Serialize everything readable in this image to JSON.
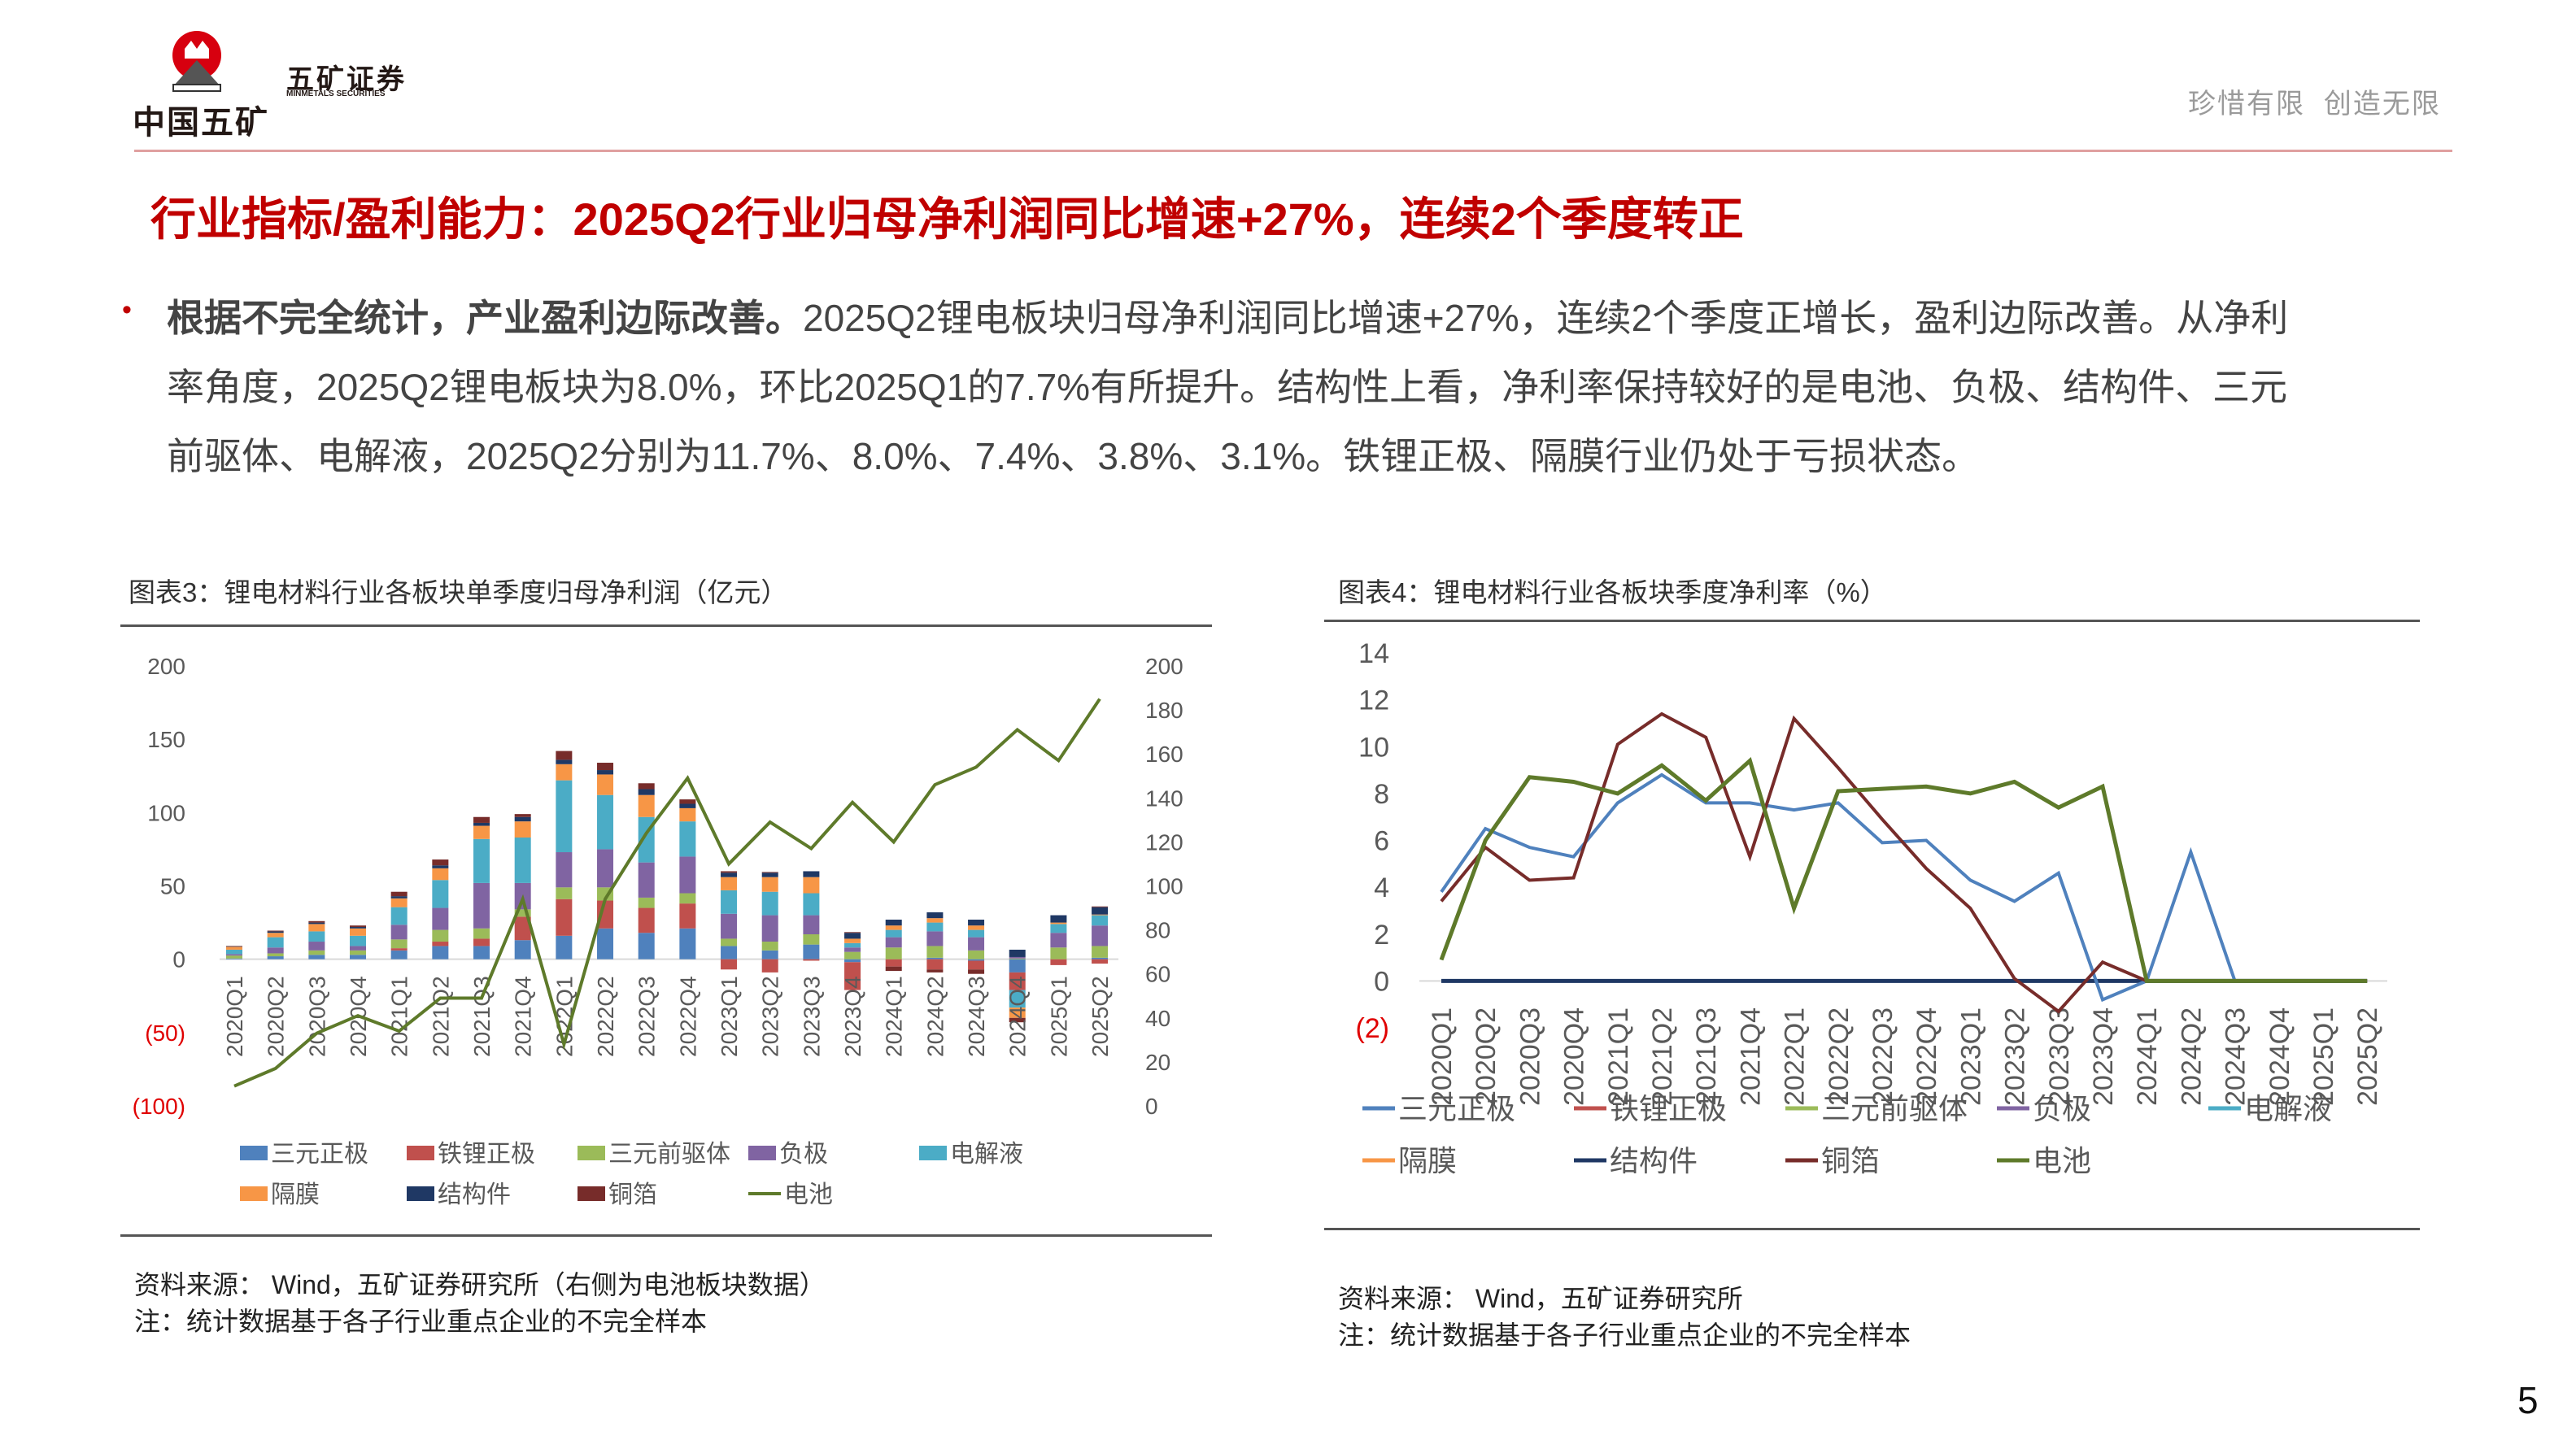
{
  "header": {
    "logo_text": "中国五矿",
    "logo_emblem_text": "MINMETALS",
    "brand_cn": "五矿证券",
    "brand_en": "MINMETALS SECURITIES",
    "slogan": "珍惜有限  创造无限"
  },
  "title": "行业指标/盈利能力：2025Q2行业归母净利润同比增速+27%，连续2个季度转正",
  "body": {
    "lines": [
      "根据不完全统计，产业盈利边际改善。2025Q2锂电板块归母净利润同比增速+27%，连续2个季度正增长，盈利边际改善。从净利",
      "率角度，2025Q2锂电板块为8.0%，环比2025Q1的7.7%有所提升。结构性上看，净利率保持较好的是电池、负极、结构件、三元",
      "前驱体、电解液，2025Q2分别为11.7%、8.0%、7.4%、3.8%、3.1%。铁锂正极、隔膜行业仍处于亏损状态。"
    ],
    "bold_lead": "根据不完全统计，产业盈利边际改善。"
  },
  "colors": {
    "accent": "#c00000",
    "三元正极": "#4f81bd",
    "铁锂正极": "#c0504d",
    "三元前驱体": "#9bbb59",
    "负极": "#8064a2",
    "电解液": "#4bacc6",
    "隔膜": "#f79646",
    "结构件": "#1f3864",
    "铜箔": "#772c2a",
    "电池": "#5e7a2a"
  },
  "left_panel": {
    "title": "图表3：锂电材料行业各板块单季度归母净利润（亿元）",
    "source": "资料来源： Wind，五矿证券研究所（右侧为电池板块数据）",
    "note": "注：统计数据基于各子行业重点企业的不完全样本"
  },
  "right_panel": {
    "title": "图表4：锂电材料行业各板块季度净利率（%）",
    "source": "资料来源： Wind，五矿证券研究所",
    "note": "注：统计数据基于各子行业重点企业的不完全样本"
  },
  "chart_data": [
    {
      "type": "bar",
      "stacked": true,
      "categories": [
        "2020Q1",
        "2020Q2",
        "2020Q3",
        "2020Q4",
        "2021Q1",
        "2021Q2",
        "2021Q3",
        "2021Q4",
        "2022Q1",
        "2022Q2",
        "2022Q3",
        "2022Q4",
        "2023Q1",
        "2023Q2",
        "2023Q3",
        "2023Q4",
        "2024Q1",
        "2024Q2",
        "2024Q3",
        "2024Q4",
        "2025Q1",
        "2025Q2"
      ],
      "ylim": [
        -100,
        200
      ],
      "yticks": [
        "200",
        "150",
        "100",
        "50",
        "0",
        "(50)",
        "(100)"
      ],
      "y2lim": [
        0,
        200
      ],
      "y2ticks": [
        "200",
        "180",
        "160",
        "140",
        "120",
        "100",
        "80",
        "60",
        "40",
        "20",
        "0"
      ],
      "legend_position": "bottom",
      "series": [
        {
          "name": "三元正极",
          "values": [
            0.5,
            2,
            3,
            3,
            6,
            9,
            9,
            13,
            16,
            21,
            18,
            21,
            9,
            6,
            10,
            -2,
            0,
            1,
            -1,
            -9,
            0,
            1
          ]
        },
        {
          "name": "铁锂正极",
          "values": [
            0,
            0,
            0,
            0,
            1.5,
            3,
            5,
            16,
            25,
            19,
            17,
            17,
            -7,
            -9,
            -1,
            -19,
            -5,
            -7,
            -6,
            -12,
            -4,
            -3
          ]
        },
        {
          "name": "三元前驱体",
          "values": [
            2,
            2,
            3,
            3,
            6,
            8,
            7,
            5,
            8,
            9,
            7,
            7,
            5,
            6,
            7,
            5,
            8,
            8,
            6,
            0.5,
            8,
            8
          ]
        },
        {
          "name": "负极",
          "values": [
            1,
            4,
            6,
            3,
            10,
            15,
            31,
            18,
            24,
            26,
            24,
            25,
            17,
            18,
            13,
            3,
            7,
            10,
            9,
            1,
            10,
            14
          ]
        },
        {
          "name": "电解液",
          "values": [
            3,
            7,
            7,
            7,
            12,
            19,
            30,
            31,
            49,
            37,
            31,
            24,
            16,
            16,
            15,
            3,
            5,
            6,
            5,
            -12,
            6,
            7
          ]
        },
        {
          "name": "隔膜",
          "values": [
            2,
            3,
            5,
            5,
            6,
            8,
            9,
            11,
            11,
            14,
            15,
            9,
            9,
            10,
            11,
            3,
            3,
            3,
            3,
            -7,
            1,
            0.5
          ]
        },
        {
          "name": "结构件",
          "values": [
            0.3,
            1,
            1,
            1,
            1.5,
            2,
            2,
            3,
            3,
            3,
            4,
            3,
            3,
            3,
            4,
            4,
            4,
            4,
            4,
            5,
            5,
            5
          ]
        },
        {
          "name": "铜箔",
          "values": [
            0.3,
            0.5,
            1,
            1,
            3,
            4,
            4,
            2,
            6,
            5,
            4,
            3,
            1,
            0.5,
            0,
            0.5,
            -3,
            -2,
            -3,
            -3,
            0,
            0.5
          ]
        },
        {
          "name": "电池",
          "axis": "right",
          "type": "line",
          "values": [
            9,
            17,
            33,
            41,
            34,
            49,
            49,
            94,
            28,
            94,
            124,
            149,
            110,
            129,
            117,
            138,
            120,
            146,
            154,
            171,
            157,
            185
          ]
        }
      ]
    },
    {
      "type": "line",
      "categories": [
        "2020Q1",
        "2020Q2",
        "2020Q3",
        "2020Q4",
        "2021Q1",
        "2021Q2",
        "2021Q3",
        "2021Q4",
        "2022Q1",
        "2022Q2",
        "2022Q3",
        "2022Q4",
        "2023Q1",
        "2023Q2",
        "2023Q3",
        "2023Q4",
        "2024Q1",
        "2024Q2",
        "2024Q3",
        "2024Q4",
        "2025Q1",
        "2025Q2"
      ],
      "ylim": [
        -2,
        14
      ],
      "yticks": [
        "14",
        "12",
        "10",
        "8",
        "6",
        "4",
        "2",
        "0",
        "(2)"
      ],
      "legend_position": "bottom",
      "legend": [
        "三元正极",
        "铁锂正极",
        "三元前驱体",
        "负极",
        "电解液",
        "隔膜",
        "结构件",
        "铜箔",
        "电池"
      ],
      "series": [
        {
          "name": "结构件",
          "values": [
            0,
            0,
            0,
            0,
            0,
            0,
            0,
            0,
            0,
            0,
            0,
            0,
            0,
            0,
            0,
            0,
            0,
            0,
            0,
            0,
            0,
            0
          ]
        },
        {
          "name": "三元正极",
          "values": [
            3.8,
            6.5,
            5.7,
            5.3,
            7.6,
            8.8,
            7.6,
            7.6,
            7.3,
            7.6,
            5.9,
            6.0,
            4.3,
            3.4,
            4.6,
            -0.8,
            0,
            5.5,
            0,
            0,
            0,
            0
          ]
        },
        {
          "name": "铜箔",
          "values": [
            3.4,
            5.7,
            4.3,
            4.4,
            10.1,
            11.4,
            10.4,
            5.3,
            11.2,
            9.1,
            6.9,
            4.8,
            3.1,
            0.1,
            -1.3,
            0.8,
            0,
            0,
            0,
            0,
            0,
            0
          ]
        },
        {
          "name": "电池",
          "values": [
            0.9,
            6.0,
            8.7,
            8.5,
            8.0,
            9.2,
            7.7,
            9.4,
            3.1,
            8.1,
            8.2,
            8.3,
            8.0,
            8.5,
            7.4,
            8.3,
            0,
            0,
            0,
            0,
            0,
            0
          ]
        }
      ]
    }
  ],
  "page_number": "5"
}
